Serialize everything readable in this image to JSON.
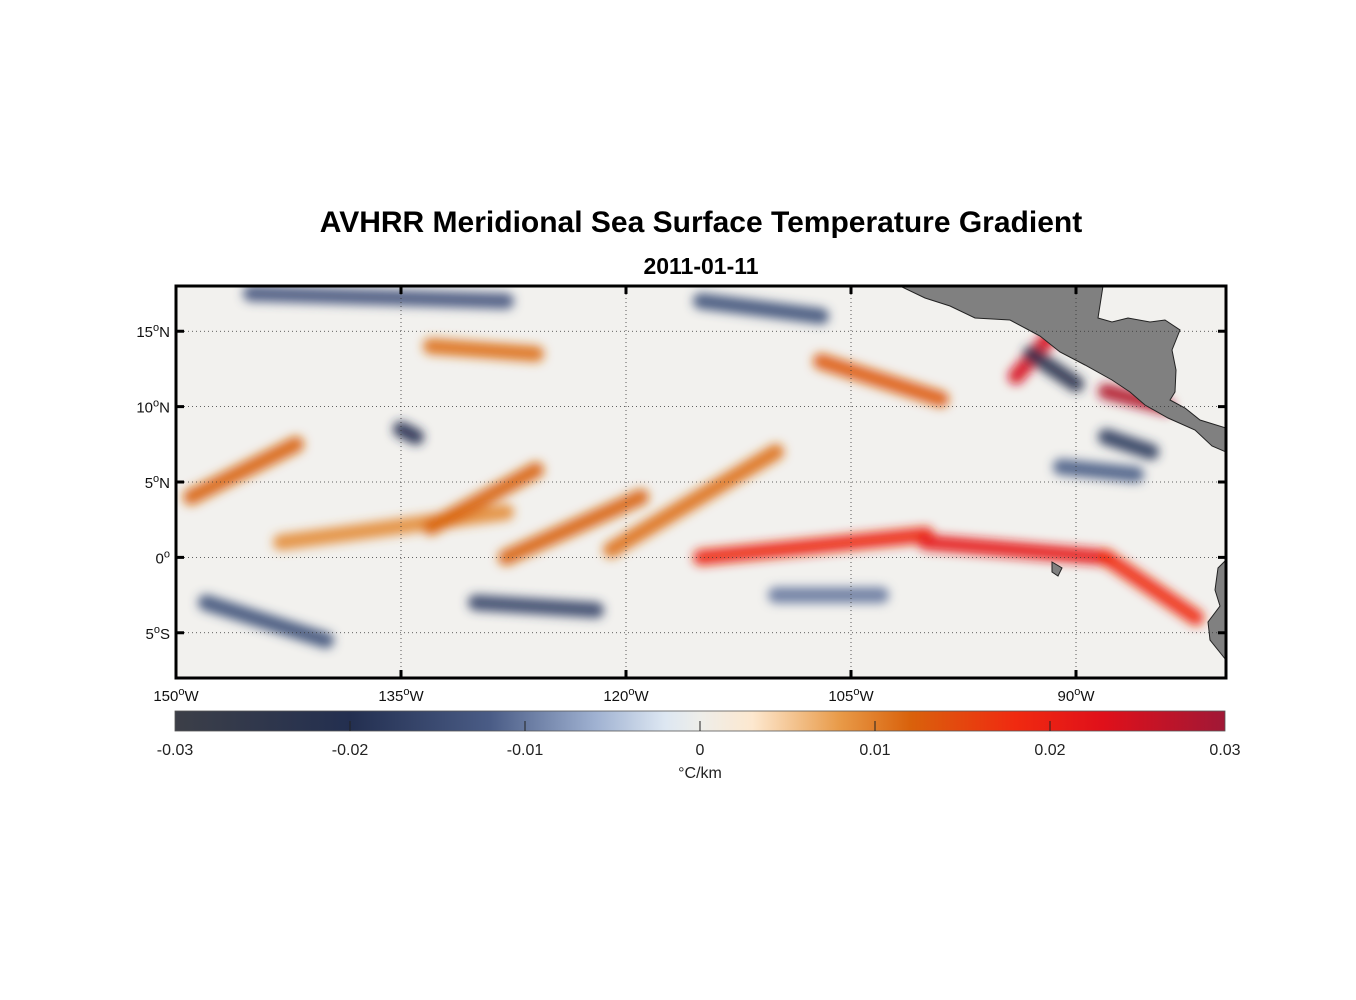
{
  "title": "AVHRR Meridional Sea Surface Temperature Gradient",
  "subtitle": "2011-01-11",
  "map": {
    "lon_range": [
      -150,
      -80
    ],
    "lat_range": [
      -8,
      18
    ],
    "lon_ticks": [
      {
        "value": -150,
        "num": "150",
        "dir": "W"
      },
      {
        "value": -135,
        "num": "135",
        "dir": "W"
      },
      {
        "value": -120,
        "num": "120",
        "dir": "W"
      },
      {
        "value": -105,
        "num": "105",
        "dir": "W"
      },
      {
        "value": -90,
        "num": "90",
        "dir": "W"
      }
    ],
    "lat_ticks": [
      {
        "value": 15,
        "num": "15",
        "dir": "N"
      },
      {
        "value": 10,
        "num": "10",
        "dir": "N"
      },
      {
        "value": 5,
        "num": "5",
        "dir": "N"
      },
      {
        "value": 0,
        "num": "0",
        "dir": ""
      },
      {
        "value": -5,
        "num": "5",
        "dir": "S"
      }
    ],
    "grid": true,
    "land_color": "#808080",
    "features": [
      {
        "lon0": -149,
        "lat0": 4.0,
        "lon1": -142,
        "lat1": 7.5,
        "v": 0.012
      },
      {
        "lon0": -143,
        "lat0": 1.0,
        "lon1": -128,
        "lat1": 3.0,
        "v": 0.009
      },
      {
        "lon0": -133,
        "lat0": 2.0,
        "lon1": -126,
        "lat1": 5.8,
        "v": 0.012
      },
      {
        "lon0": -121,
        "lat0": 0.5,
        "lon1": -110,
        "lat1": 7.0,
        "v": 0.011
      },
      {
        "lon0": -128,
        "lat0": 0.0,
        "lon1": -119,
        "lat1": 4.0,
        "v": 0.012
      },
      {
        "lon0": -115,
        "lat0": 0.0,
        "lon1": -100,
        "lat1": 1.5,
        "v": 0.019
      },
      {
        "lon0": -100,
        "lat0": 1.0,
        "lon1": -88,
        "lat1": 0.0,
        "v": 0.021
      },
      {
        "lon0": -88,
        "lat0": 0.0,
        "lon1": -82,
        "lat1": -4.0,
        "v": 0.018
      },
      {
        "lon0": -94,
        "lat0": 12.0,
        "lon1": -91,
        "lat1": 15.5,
        "v": 0.024
      },
      {
        "lon0": -88,
        "lat0": 11.0,
        "lon1": -84,
        "lat1": 10.0,
        "v": 0.028
      },
      {
        "lon0": -107,
        "lat0": 13.0,
        "lon1": -99,
        "lat1": 10.5,
        "v": 0.013
      },
      {
        "lon0": -133,
        "lat0": 14.0,
        "lon1": -126,
        "lat1": 13.5,
        "v": 0.011
      },
      {
        "lon0": -148,
        "lat0": -3.0,
        "lon1": -140,
        "lat1": -5.5,
        "v": -0.014
      },
      {
        "lon0": -130,
        "lat0": -3.0,
        "lon1": -122,
        "lat1": -3.5,
        "v": -0.016
      },
      {
        "lon0": -145,
        "lat0": 17.5,
        "lon1": -128,
        "lat1": 17.0,
        "v": -0.013
      },
      {
        "lon0": -115,
        "lat0": 17.0,
        "lon1": -107,
        "lat1": 16.0,
        "v": -0.014
      },
      {
        "lon0": -93,
        "lat0": 13.5,
        "lon1": -90,
        "lat1": 11.5,
        "v": -0.022
      },
      {
        "lon0": -88,
        "lat0": 8.0,
        "lon1": -85,
        "lat1": 7.0,
        "v": -0.018
      },
      {
        "lon0": -135,
        "lat0": 8.5,
        "lon1": -134,
        "lat1": 8.0,
        "v": -0.02
      },
      {
        "lon0": -91,
        "lat0": 6.0,
        "lon1": -86,
        "lat1": 5.5,
        "v": -0.012
      },
      {
        "lon0": -110,
        "lat0": -2.5,
        "lon1": -103,
        "lat1": -2.5,
        "v": -0.01
      }
    ]
  },
  "colorbar": {
    "min": -0.03,
    "max": 0.03,
    "ticks": [
      {
        "value": -0.03,
        "label": "-0.03"
      },
      {
        "value": -0.02,
        "label": "-0.02"
      },
      {
        "value": -0.01,
        "label": "-0.01"
      },
      {
        "value": 0,
        "label": "0"
      },
      {
        "value": 0.01,
        "label": "0.01"
      },
      {
        "value": 0.02,
        "label": "0.02"
      },
      {
        "value": 0.03,
        "label": "0.03"
      }
    ],
    "stops": [
      {
        "v": -0.03,
        "color": "#3c3f48"
      },
      {
        "v": -0.02,
        "color": "#232f50"
      },
      {
        "v": -0.012,
        "color": "#4a5c86"
      },
      {
        "v": -0.006,
        "color": "#9fb1d1"
      },
      {
        "v": -0.002,
        "color": "#dde7f2"
      },
      {
        "v": 0,
        "color": "#eeeeea"
      },
      {
        "v": 0.003,
        "color": "#fde8cf"
      },
      {
        "v": 0.008,
        "color": "#e89a48"
      },
      {
        "v": 0.012,
        "color": "#d9620c"
      },
      {
        "v": 0.018,
        "color": "#f02a10"
      },
      {
        "v": 0.023,
        "color": "#e0101a"
      },
      {
        "v": 0.03,
        "color": "#a01836"
      }
    ],
    "unit": "°C/km"
  }
}
